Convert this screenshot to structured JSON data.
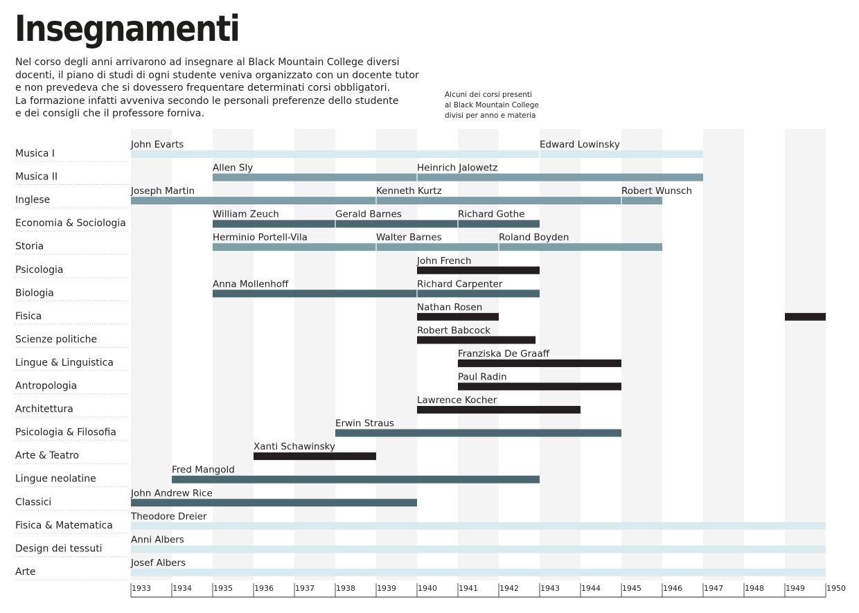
{
  "title": "Insegnamenti",
  "intro_lines": [
    "Nel corso degli anni arrivarono ad insegnare al Black Mountain College diversi",
    "docenti, il piano di studi di ogni studente veniva organizzato con un docente tutor",
    "e non prevedeva che si dovessero frequentare determinati corsi obbligatori.",
    "La formazione infatti avveniva secondo le personali preferenze dello studente",
    "e dei consigli che il professore forniva."
  ],
  "note_lines": [
    "Alcuni dei corsi presenti",
    "al Black Mountain College",
    "divisi per anno e materia"
  ],
  "colors": {
    "light": "#daebf0",
    "mid": "#7f9ea5",
    "slate": "#4d6770",
    "black": "#231f20",
    "band": "#f4f4f4"
  },
  "chart_data": {
    "type": "timeline",
    "x_ticks": [
      1933,
      1934,
      1935,
      1936,
      1937,
      1938,
      1939,
      1940,
      1941,
      1942,
      1943,
      1944,
      1945,
      1946,
      1947,
      1948,
      1949,
      1950
    ],
    "xlim": [
      1933,
      1950
    ],
    "subjects": [
      {
        "name": "Musica I",
        "color": "light",
        "segments": [
          {
            "teacher": "John Evarts",
            "start": 1933,
            "end": 1943
          },
          {
            "teacher": "Edward Lowinsky",
            "start": 1943,
            "end": 1947
          }
        ]
      },
      {
        "name": "Musica II",
        "color": "mid",
        "segments": [
          {
            "teacher": "Allen Sly",
            "start": 1935,
            "end": 1940
          },
          {
            "teacher": "Heinrich Jalowetz",
            "start": 1940,
            "end": 1947
          }
        ]
      },
      {
        "name": "Inglese",
        "color": "mid",
        "segments": [
          {
            "teacher": "Joseph Martin",
            "start": 1933,
            "end": 1939
          },
          {
            "teacher": "Kenneth Kurtz",
            "start": 1939,
            "end": 1945
          },
          {
            "teacher": "Robert Wunsch",
            "start": 1945,
            "end": 1946
          }
        ]
      },
      {
        "name": "Economia & Sociologia",
        "color": "slate",
        "segments": [
          {
            "teacher": "William Zeuch",
            "start": 1935,
            "end": 1938
          },
          {
            "teacher": "Gerald Barnes",
            "start": 1938,
            "end": 1941
          },
          {
            "teacher": "Richard Gothe",
            "start": 1941,
            "end": 1943
          }
        ]
      },
      {
        "name": "Storia",
        "color": "mid",
        "segments": [
          {
            "teacher": "Herminio Portell-Vila",
            "start": 1935,
            "end": 1939
          },
          {
            "teacher": "Walter Barnes",
            "start": 1939,
            "end": 1942
          },
          {
            "teacher": "Roland Boyden",
            "start": 1942,
            "end": 1946
          }
        ]
      },
      {
        "name": "Psicologia",
        "color": "black",
        "segments": [
          {
            "teacher": "John French",
            "start": 1940,
            "end": 1943
          }
        ]
      },
      {
        "name": "Biologia",
        "color": "slate",
        "segments": [
          {
            "teacher": "Anna Mollenhoff",
            "start": 1935,
            "end": 1940
          },
          {
            "teacher": "Richard Carpenter",
            "start": 1940,
            "end": 1943
          }
        ]
      },
      {
        "name": "Fisica",
        "color": "black",
        "segments": [
          {
            "teacher": "Nathan Rosen",
            "start": 1940,
            "end": 1942
          },
          {
            "teacher": "",
            "start": 1949,
            "end": 1950
          }
        ]
      },
      {
        "name": "Scienze politiche",
        "color": "black",
        "segments": [
          {
            "teacher": "Robert Babcock",
            "start": 1940,
            "end": 1942.9
          }
        ]
      },
      {
        "name": "Lingue & Linguistica",
        "color": "black",
        "segments": [
          {
            "teacher": "Franziska De Graaff",
            "start": 1941,
            "end": 1945
          }
        ]
      },
      {
        "name": "Antropologia",
        "color": "black",
        "segments": [
          {
            "teacher": "Paul Radin",
            "start": 1941,
            "end": 1945
          }
        ]
      },
      {
        "name": "Architettura",
        "color": "black",
        "segments": [
          {
            "teacher": "Lawrence Kocher",
            "start": 1940,
            "end": 1944
          }
        ]
      },
      {
        "name": "Psicologia & Filosofia",
        "color": "slate",
        "segments": [
          {
            "teacher": "Erwin Straus",
            "start": 1938,
            "end": 1945
          }
        ]
      },
      {
        "name": "Arte & Teatro",
        "color": "black",
        "segments": [
          {
            "teacher": "Xanti Schawinsky",
            "start": 1936,
            "end": 1939
          }
        ]
      },
      {
        "name": "Lingue neolatine",
        "color": "slate",
        "segments": [
          {
            "teacher": "Fred Mangold",
            "start": 1934,
            "end": 1943
          }
        ]
      },
      {
        "name": "Classici",
        "color": "slate",
        "segments": [
          {
            "teacher": "John Andrew Rice",
            "start": 1933,
            "end": 1940
          }
        ]
      },
      {
        "name": "Fisica & Matematica",
        "color": "light",
        "segments": [
          {
            "teacher": "Theodore Dreier",
            "start": 1933,
            "end": 1950
          }
        ]
      },
      {
        "name": "Design dei tessuti",
        "color": "light",
        "segments": [
          {
            "teacher": "Anni Albers",
            "start": 1933,
            "end": 1950
          }
        ]
      },
      {
        "name": "Arte",
        "color": "light",
        "segments": [
          {
            "teacher": "Josef Albers",
            "start": 1933,
            "end": 1950
          }
        ]
      }
    ]
  }
}
